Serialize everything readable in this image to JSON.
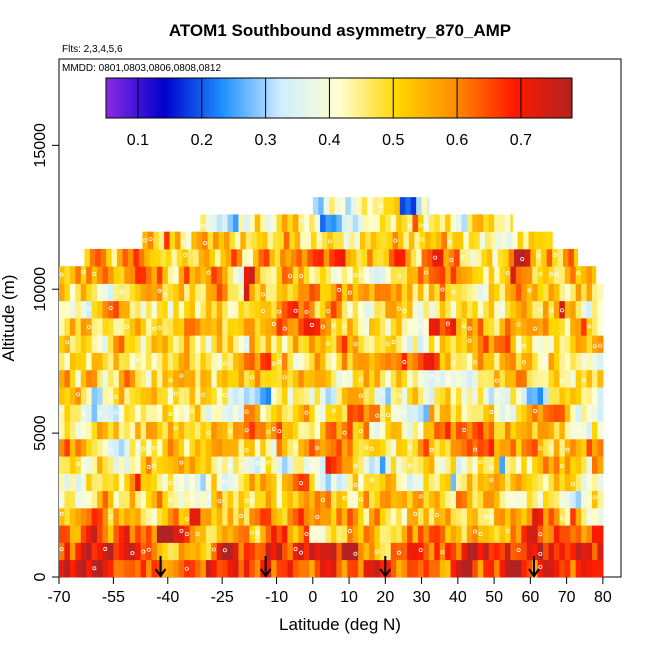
{
  "chart_data": {
    "type": "heatmap",
    "title": "ATOM1 Southbound asymmetry_870_AMP",
    "flights_note": "Flts: 2,3,4,5,6",
    "dates_note": "MMDD: 0801,0803,0806,0808,0812",
    "xlabel": "Latitude (deg N)",
    "ylabel": "Altitude (m)",
    "xlim": [
      -70,
      85
    ],
    "ylim": [
      0,
      18000
    ],
    "x_ticks": [
      -70,
      -55,
      -40,
      -25,
      -10,
      0,
      10,
      20,
      30,
      40,
      50,
      60,
      70,
      80
    ],
    "x_tick_labels": [
      "-70",
      "-55",
      "-40",
      "-25",
      "-10",
      "0",
      "10",
      "20",
      "30",
      "40",
      "50",
      "60",
      "70",
      "80"
    ],
    "y_ticks": [
      0,
      5000,
      10000,
      15000
    ],
    "y_tick_labels": [
      "0",
      "5000",
      "10000",
      "15000"
    ],
    "colorbar": {
      "range": [
        0.05,
        0.78
      ],
      "ticks": [
        0.1,
        0.2,
        0.3,
        0.4,
        0.5,
        0.6,
        0.7
      ],
      "tick_labels": [
        "0.1",
        "0.2",
        "0.3",
        "0.4",
        "0.5",
        "0.6",
        "0.7"
      ],
      "colors": [
        "#8a2be2",
        "#0000cd",
        "#1e90ff",
        "#cfeeff",
        "#ffffd0",
        "#ffd700",
        "#ff8c00",
        "#ff1a00",
        "#b22222"
      ]
    },
    "marker_latitudes": [
      -42,
      -13,
      20,
      61
    ],
    "marker_color": "#000000",
    "altitude_layers": [
      {
        "alt": 300,
        "lat_min": -70,
        "lat_max": 80,
        "mean": 0.68
      },
      {
        "alt": 900,
        "lat_min": -70,
        "lat_max": 80,
        "mean": 0.66
      },
      {
        "alt": 1500,
        "lat_min": -70,
        "lat_max": 80,
        "mean": 0.6
      },
      {
        "alt": 2100,
        "lat_min": -70,
        "lat_max": 80,
        "mean": 0.55
      },
      {
        "alt": 2700,
        "lat_min": -70,
        "lat_max": 80,
        "mean": 0.5
      },
      {
        "alt": 3300,
        "lat_min": -70,
        "lat_max": 80,
        "mean": 0.48
      },
      {
        "alt": 3900,
        "lat_min": -70,
        "lat_max": 80,
        "mean": 0.47
      },
      {
        "alt": 4500,
        "lat_min": -70,
        "lat_max": 80,
        "mean": 0.5
      },
      {
        "alt": 5100,
        "lat_min": -70,
        "lat_max": 80,
        "mean": 0.52
      },
      {
        "alt": 5700,
        "lat_min": -70,
        "lat_max": 80,
        "mean": 0.45
      },
      {
        "alt": 6300,
        "lat_min": -70,
        "lat_max": 80,
        "mean": 0.43
      },
      {
        "alt": 6900,
        "lat_min": -70,
        "lat_max": 80,
        "mean": 0.5
      },
      {
        "alt": 7500,
        "lat_min": -70,
        "lat_max": 80,
        "mean": 0.55
      },
      {
        "alt": 8100,
        "lat_min": -70,
        "lat_max": 80,
        "mean": 0.5
      },
      {
        "alt": 8700,
        "lat_min": -70,
        "lat_max": 80,
        "mean": 0.53
      },
      {
        "alt": 9300,
        "lat_min": -70,
        "lat_max": 80,
        "mean": 0.5
      },
      {
        "alt": 9900,
        "lat_min": -70,
        "lat_max": 80,
        "mean": 0.52
      },
      {
        "alt": 10500,
        "lat_min": -70,
        "lat_max": 78,
        "mean": 0.55
      },
      {
        "alt": 11100,
        "lat_min": -63,
        "lat_max": 73,
        "mean": 0.55
      },
      {
        "alt": 11700,
        "lat_min": -47,
        "lat_max": 66,
        "mean": 0.5
      },
      {
        "alt": 12300,
        "lat_min": -31,
        "lat_max": 55,
        "mean": 0.45
      },
      {
        "alt": 12900,
        "lat_min": 0,
        "lat_max": 32,
        "mean": 0.38
      }
    ]
  }
}
